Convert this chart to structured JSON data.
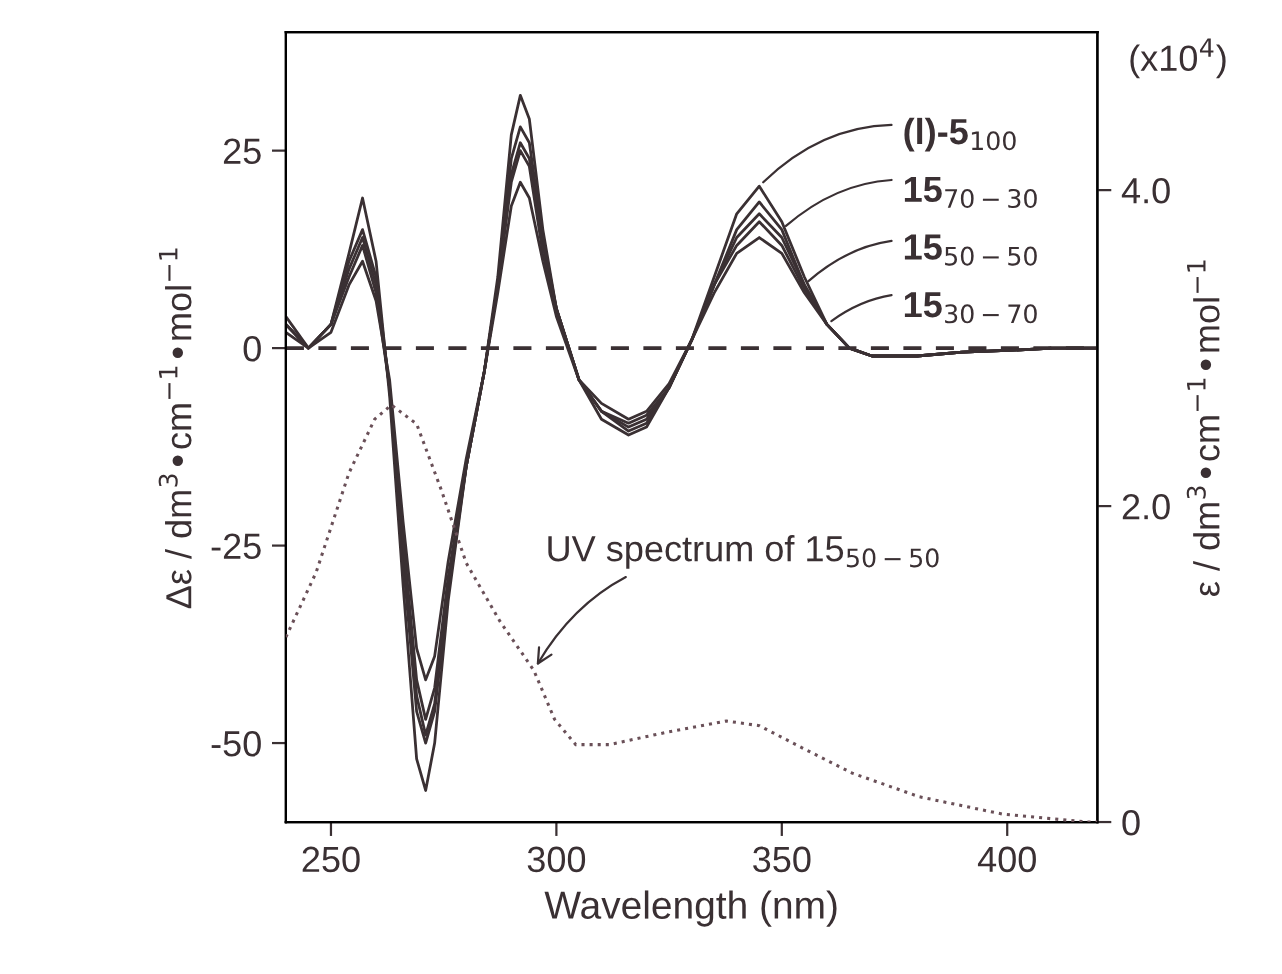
{
  "chart_data": {
    "type": "line",
    "xlabel": "Wavelength (nm)",
    "ylabel": "Δε / dm$^{3}$•cm$^{−1}$•mol$^{−1}$",
    "y2label": "ε / dm$^{3}$•cm$^{−1}$•mol$^{−1}$",
    "annotations": [
      "(x10$^{4}$)",
      {
        "text": "UV spectrum of 15$_{50−50}$",
        "x": 295,
        "y": -40.8
      }
    ],
    "x": [
      240,
      245,
      250,
      254,
      257,
      260,
      263,
      266,
      269,
      271,
      273,
      276,
      280,
      284,
      287,
      290,
      292,
      294,
      297,
      300,
      305,
      310,
      316,
      320,
      325,
      330,
      335,
      340,
      345,
      350,
      355,
      360,
      365,
      370,
      380,
      390,
      400,
      410,
      420
    ],
    "series": [
      {
        "name": "(l)-5$_{100}$",
        "color": "#3a3033",
        "values": [
          4,
          0,
          3,
          12,
          19,
          11,
          -6,
          -30,
          -52,
          -56,
          -50,
          -32,
          -15,
          -3,
          9,
          27,
          32,
          29,
          15,
          5,
          -4,
          -9,
          -11,
          -10,
          -5,
          1,
          9,
          17,
          20.5,
          16,
          9,
          3,
          0,
          -1,
          -1,
          -0.5,
          -0.3,
          0,
          0
        ]
      },
      {
        "name": "15$_{70−30}$",
        "color": "#3a3033",
        "values": [
          3,
          0,
          3,
          11,
          15,
          9,
          -5,
          -27,
          -46,
          -50,
          -46,
          -31,
          -15,
          -3,
          8,
          24,
          28,
          26,
          14,
          5,
          -4,
          -8,
          -10.5,
          -9.5,
          -5,
          1,
          8,
          15,
          18.5,
          15,
          8,
          3,
          0,
          -1,
          -1,
          -0.5,
          -0.3,
          0,
          0
        ]
      },
      {
        "name": "15$_{50−50}$",
        "color": "#3a3033",
        "values": [
          3,
          0,
          3,
          10,
          14,
          8,
          -5,
          -25,
          -44,
          -49,
          -45,
          -30,
          -15,
          -3,
          8,
          22,
          26,
          24,
          13,
          5,
          -4,
          -8,
          -10,
          -9,
          -5,
          1,
          8,
          14,
          17,
          14,
          8,
          3,
          0,
          -1,
          -1,
          -0.5,
          -0.3,
          0,
          0
        ]
      },
      {
        "name": "15$_{30−70}$",
        "color": "#3a3033",
        "values": [
          3,
          0,
          3,
          9,
          13,
          7,
          -5,
          -24,
          -42,
          -47,
          -43,
          -29,
          -15,
          -3,
          8,
          21,
          25,
          23,
          12,
          5,
          -4,
          -8,
          -9.5,
          -8.5,
          -5,
          1,
          8,
          13,
          16,
          13,
          7.5,
          3,
          0,
          -1,
          -1,
          -0.5,
          -0.3,
          0,
          0
        ]
      },
      {
        "color": "#3a3033",
        "values": [
          2,
          0,
          2,
          8,
          11,
          6,
          -4,
          -22,
          -38,
          -42,
          -39,
          -27,
          -14,
          -3,
          7,
          18,
          21,
          19,
          11,
          4,
          -4,
          -7,
          -9,
          -8,
          -4.5,
          1,
          7,
          12,
          14,
          12,
          7,
          3,
          0,
          -1,
          -1,
          -0.5,
          -0.3,
          0,
          0
        ]
      },
      {
        "axis": "y2",
        "line_style": "dotted",
        "color": "#6a5058",
        "x": [
          240,
          246.7,
          254,
          259.7,
          263.4,
          269,
          274.5,
          280,
          287.5,
          295,
          299.6,
          304.3,
          311.7,
          324.7,
          337.7,
          345,
          354.5,
          365.6,
          380.5,
          399,
          417.7,
          420
        ],
        "values": [
          1.17,
          1.58,
          2.21,
          2.55,
          2.64,
          2.52,
          2.1,
          1.64,
          1.27,
          0.96,
          0.65,
          0.49,
          0.49,
          0.57,
          0.64,
          0.61,
          0.47,
          0.31,
          0.16,
          0.05,
          0,
          0
        ]
      }
    ],
    "xlim": [
      240,
      420
    ],
    "xticks": [
      250,
      300,
      350,
      400
    ],
    "ylim": [
      -60,
      40
    ],
    "yticks": [
      {
        "value": -50,
        "label": "-50"
      },
      {
        "value": -25,
        "label": "-25"
      },
      0,
      25
    ],
    "y2lim": [
      0,
      5
    ],
    "y2ticks": [
      0,
      {
        "value": 2,
        "label": "2.0"
      },
      {
        "value": 4,
        "label": "4.0"
      }
    ],
    "ref_lines": [
      {
        "axis": "y",
        "value": 0,
        "color": "#3a3033",
        "line_style": "dashed"
      }
    ],
    "line_style": "solid",
    "grid": false,
    "legend": "top right"
  }
}
